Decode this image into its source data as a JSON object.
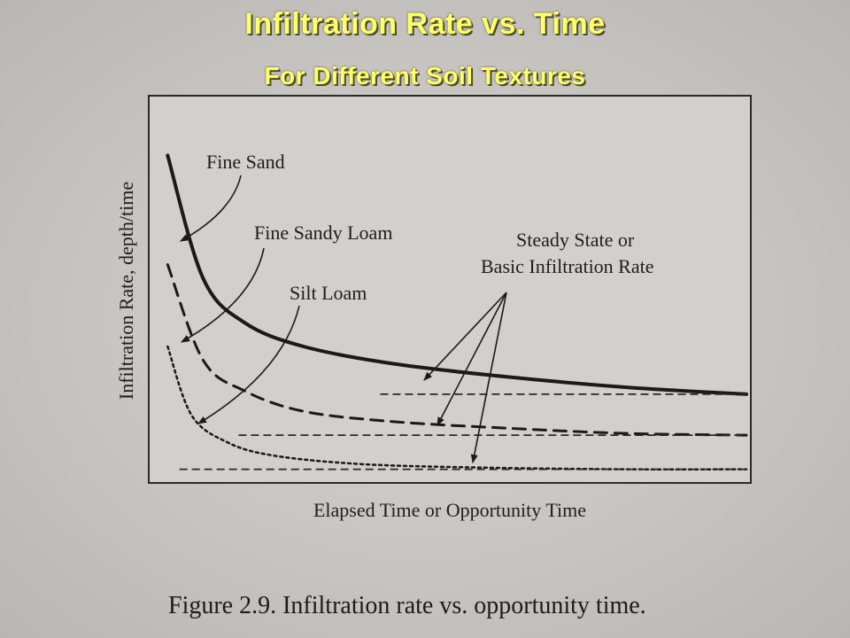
{
  "header": {
    "title": "Infiltration Rate vs. Time",
    "subtitle": "For Different Soil Textures"
  },
  "figure": {
    "caption": "Figure 2.9. Infiltration rate vs. opportunity time."
  },
  "chart_data": {
    "type": "line",
    "xlabel": "Elapsed Time or Opportunity Time",
    "ylabel": "Infiltration Rate, depth/time",
    "grid": false,
    "legend": "none",
    "series": [
      {
        "name": "Fine Sand",
        "line_style": "solid",
        "steady_rate": 0.26,
        "x": [
          0.02,
          0.08,
          0.15,
          0.25,
          0.4,
          0.6,
          0.8,
          1.0
        ],
        "y": [
          0.96,
          0.6,
          0.47,
          0.4,
          0.35,
          0.31,
          0.28,
          0.26
        ]
      },
      {
        "name": "Fine Sandy Loam",
        "line_style": "dashed",
        "steady_rate": 0.14,
        "x": [
          0.02,
          0.08,
          0.15,
          0.25,
          0.4,
          0.6,
          0.8,
          1.0
        ],
        "y": [
          0.64,
          0.36,
          0.27,
          0.21,
          0.18,
          0.16,
          0.145,
          0.14
        ]
      },
      {
        "name": "Silt Loam",
        "line_style": "dotted",
        "steady_rate": 0.04,
        "x": [
          0.02,
          0.06,
          0.12,
          0.2,
          0.35,
          0.55,
          0.8,
          1.0
        ],
        "y": [
          0.4,
          0.2,
          0.12,
          0.08,
          0.055,
          0.045,
          0.04,
          0.04
        ]
      }
    ],
    "steady_state_lines": [
      {
        "value": 0.26,
        "x_start": 0.38
      },
      {
        "value": 0.14,
        "x_start": 0.14
      },
      {
        "value": 0.04,
        "x_start": 0.04
      }
    ],
    "annotations": [
      {
        "text": "Fine Sand"
      },
      {
        "text": "Fine Sandy Loam"
      },
      {
        "text": "Silt Loam"
      },
      {
        "text": "Steady State or"
      },
      {
        "text": "Basic Infiltration Rate"
      }
    ],
    "xlim": [
      0,
      1
    ],
    "ylim": [
      0,
      1
    ]
  }
}
